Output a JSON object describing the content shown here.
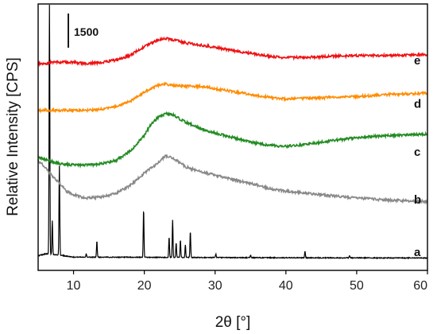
{
  "chart_data": {
    "type": "line",
    "title": "",
    "xlabel": "2θ [°]",
    "ylabel": "Relative Intensity [CPS]",
    "xlim": [
      5,
      60
    ],
    "xticks": [
      10,
      20,
      30,
      40,
      50,
      60
    ],
    "y_ticks_shown": false,
    "grid": false,
    "legend": "none",
    "scale_bar": {
      "label": "1500",
      "value": 1500
    },
    "series": [
      {
        "name": "a",
        "color": "#000000",
        "baseline": 0,
        "peaks": [
          [
            6.6,
            11000
          ],
          [
            7.0,
            1500
          ],
          [
            8.0,
            3900
          ],
          [
            11.8,
            150
          ],
          [
            13.3,
            700
          ],
          [
            19.9,
            2100
          ],
          [
            23.5,
            900
          ],
          [
            24.0,
            1650
          ],
          [
            24.5,
            650
          ],
          [
            25.1,
            750
          ],
          [
            25.8,
            550
          ],
          [
            26.5,
            1150
          ],
          [
            30.1,
            150
          ],
          [
            35.0,
            120
          ],
          [
            42.7,
            300
          ],
          [
            49.0,
            100
          ]
        ],
        "points": [
          [
            5,
            120
          ],
          [
            6,
            200
          ],
          [
            8,
            150
          ],
          [
            10,
            60
          ],
          [
            20,
            50
          ],
          [
            30,
            40
          ],
          [
            40,
            30
          ],
          [
            50,
            25
          ],
          [
            60,
            20
          ]
        ]
      },
      {
        "name": "b",
        "color": "#888888",
        "baseline": 2300,
        "points": [
          [
            5,
            4300
          ],
          [
            6,
            4000
          ],
          [
            7,
            3600
          ],
          [
            8,
            3300
          ],
          [
            9,
            2950
          ],
          [
            10,
            2800
          ],
          [
            11,
            2700
          ],
          [
            12,
            2650
          ],
          [
            14,
            2700
          ],
          [
            16,
            2850
          ],
          [
            18,
            3200
          ],
          [
            20,
            3750
          ],
          [
            22,
            4200
          ],
          [
            23,
            4500
          ],
          [
            24,
            4400
          ],
          [
            26,
            4000
          ],
          [
            28,
            3800
          ],
          [
            30,
            3650
          ],
          [
            32,
            3500
          ],
          [
            35,
            3300
          ],
          [
            38,
            3050
          ],
          [
            40,
            2950
          ],
          [
            45,
            2800
          ],
          [
            50,
            2650
          ],
          [
            55,
            2550
          ],
          [
            60,
            2500
          ]
        ]
      },
      {
        "name": "c",
        "color": "#228B22",
        "baseline": 4400,
        "points": [
          [
            5,
            4450
          ],
          [
            6,
            4350
          ],
          [
            7,
            4250
          ],
          [
            8,
            4150
          ],
          [
            10,
            4100
          ],
          [
            12,
            4100
          ],
          [
            14,
            4150
          ],
          [
            16,
            4300
          ],
          [
            18,
            4700
          ],
          [
            20,
            5400
          ],
          [
            21,
            5900
          ],
          [
            22,
            6200
          ],
          [
            23,
            6350
          ],
          [
            24,
            6300
          ],
          [
            26,
            5950
          ],
          [
            28,
            5700
          ],
          [
            30,
            5500
          ],
          [
            32,
            5350
          ],
          [
            35,
            5100
          ],
          [
            38,
            4950
          ],
          [
            40,
            4920
          ],
          [
            43,
            5000
          ],
          [
            46,
            5150
          ],
          [
            50,
            5300
          ],
          [
            55,
            5400
          ],
          [
            60,
            5450
          ]
        ]
      },
      {
        "name": "d",
        "color": "#FF8C00",
        "baseline": 6500,
        "points": [
          [
            5,
            6500
          ],
          [
            6,
            6500
          ],
          [
            8,
            6500
          ],
          [
            10,
            6500
          ],
          [
            12,
            6500
          ],
          [
            14,
            6550
          ],
          [
            16,
            6650
          ],
          [
            18,
            6900
          ],
          [
            20,
            7300
          ],
          [
            22,
            7600
          ],
          [
            23,
            7650
          ],
          [
            24,
            7600
          ],
          [
            26,
            7550
          ],
          [
            28,
            7550
          ],
          [
            30,
            7450
          ],
          [
            32,
            7350
          ],
          [
            35,
            7200
          ],
          [
            38,
            7050
          ],
          [
            40,
            7000
          ],
          [
            45,
            7050
          ],
          [
            50,
            7100
          ],
          [
            55,
            7200
          ],
          [
            60,
            7250
          ]
        ]
      },
      {
        "name": "e",
        "color": "#EE1111",
        "baseline": 8400,
        "points": [
          [
            5,
            8550
          ],
          [
            6,
            8550
          ],
          [
            7,
            8600
          ],
          [
            8,
            8620
          ],
          [
            10,
            8600
          ],
          [
            12,
            8550
          ],
          [
            14,
            8600
          ],
          [
            16,
            8700
          ],
          [
            18,
            8900
          ],
          [
            20,
            9300
          ],
          [
            22,
            9600
          ],
          [
            23,
            9650
          ],
          [
            24,
            9600
          ],
          [
            26,
            9450
          ],
          [
            28,
            9350
          ],
          [
            30,
            9250
          ],
          [
            32,
            9150
          ],
          [
            35,
            9000
          ],
          [
            38,
            8850
          ],
          [
            40,
            8800
          ],
          [
            45,
            8850
          ],
          [
            50,
            8900
          ],
          [
            55,
            8900
          ],
          [
            60,
            8950
          ]
        ]
      }
    ]
  }
}
